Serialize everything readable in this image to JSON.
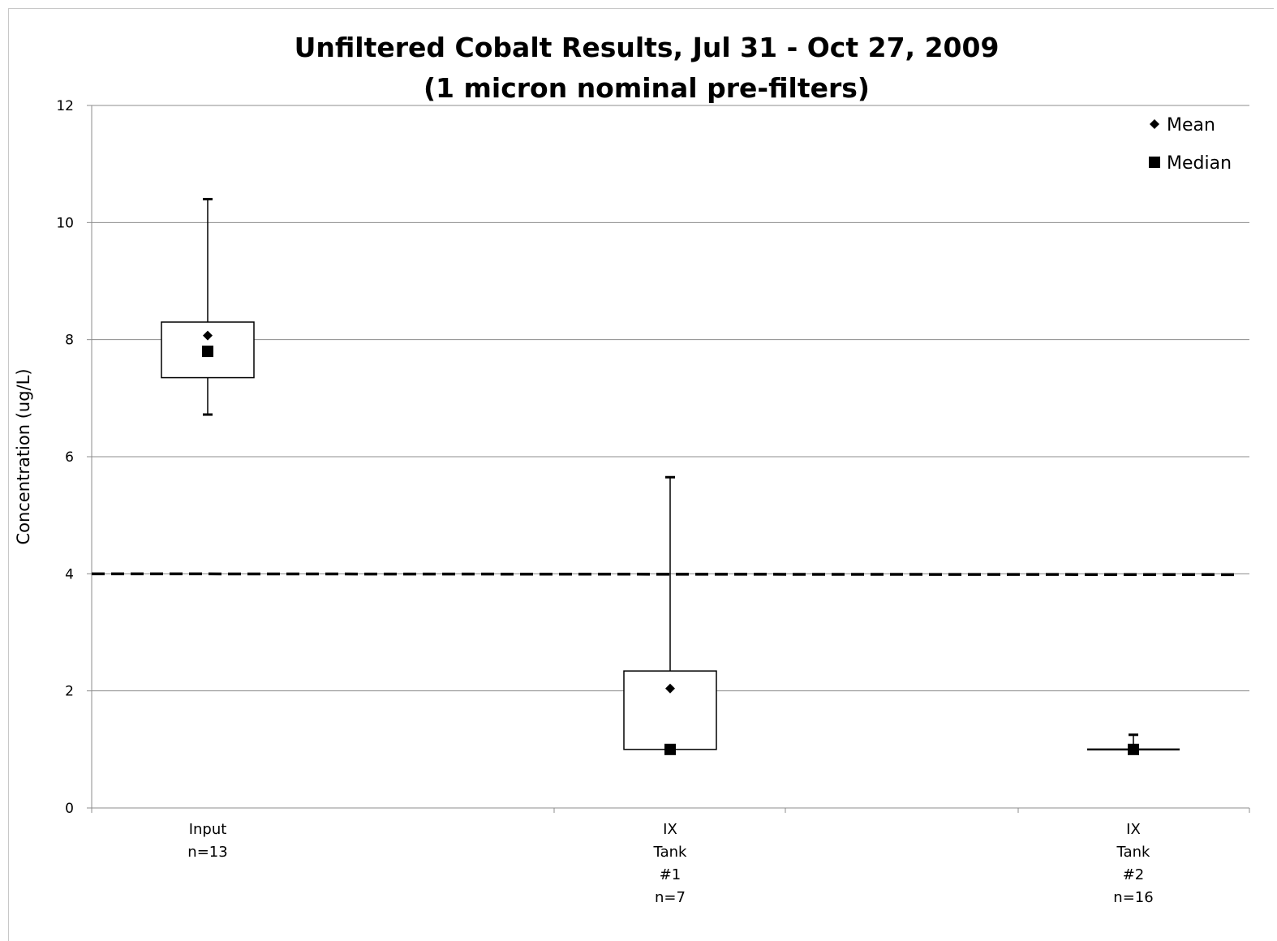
{
  "chart_data": {
    "type": "boxplot",
    "title": [
      "Unfiltered Cobalt Results, Jul 31 - Oct 27, 2009",
      "(1 micron nominal pre-filters)"
    ],
    "xlabel": "",
    "ylabel": "Concentration (ug/L)",
    "ylim": [
      0,
      12
    ],
    "yticks": [
      "0",
      "2",
      "4",
      "6",
      "8",
      "10",
      "12"
    ],
    "grid": "horizontal",
    "legend_position": "top-right",
    "legend": [
      {
        "name": "Mean",
        "marker": "diamond"
      },
      {
        "name": "Median",
        "marker": "square"
      }
    ],
    "reference_line": {
      "y": 4,
      "style": "dashed"
    },
    "categories": [
      {
        "label": [
          "Input",
          "n=13"
        ],
        "min": 6.72,
        "q1": 7.35,
        "median": 7.8,
        "mean": 8.07,
        "q3": 8.3,
        "max": 10.4
      },
      {
        "label": [
          "IX",
          "Tank",
          "#1",
          "n=7"
        ],
        "min": 1.0,
        "q1": 1.0,
        "median": 1.0,
        "mean": 2.04,
        "q3": 2.34,
        "max": 5.65
      },
      {
        "label": [
          "IX",
          "Tank",
          "#2",
          "n=16"
        ],
        "min": 1.0,
        "q1": 1.0,
        "median": 1.0,
        "mean": 1.0,
        "q3": 1.0,
        "max": 1.25
      }
    ]
  }
}
